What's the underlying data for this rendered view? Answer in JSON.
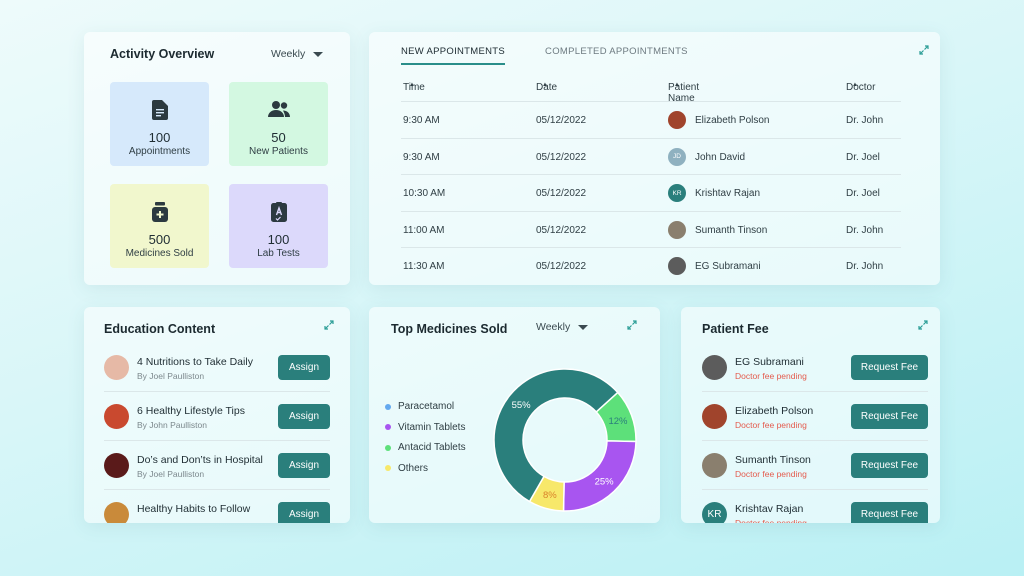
{
  "activity": {
    "title": "Activity Overview",
    "period": "Weekly",
    "tiles": [
      {
        "value": "100",
        "label": "Appointments",
        "icon": "document-icon",
        "color": "#d6e9fb"
      },
      {
        "value": "50",
        "label": "New Patients",
        "icon": "users-icon",
        "color": "#d3f8e1"
      },
      {
        "value": "500",
        "label": "Medicines Sold",
        "icon": "medicine-bottle-icon",
        "color": "#f1f7cd"
      },
      {
        "value": "100",
        "label": "Lab Tests",
        "icon": "lab-report-icon",
        "color": "#dcd9fb"
      }
    ]
  },
  "appointments": {
    "tabs": [
      "NEW APPOINTMENTS",
      "COMPLETED APPOINTMENTS"
    ],
    "active_tab": 0,
    "columns": [
      "Time",
      "Date",
      "Patient Name",
      "Doctor"
    ],
    "rows": [
      {
        "time": "9:30 AM",
        "date": "05/12/2022",
        "patient": "Elizabeth Polson",
        "avatar": "",
        "avatar_color": "#a0442c",
        "doctor": "Dr. John"
      },
      {
        "time": "9:30 AM",
        "date": "05/12/2022",
        "patient": "John David",
        "avatar": "JD",
        "avatar_color": "#8fb1c0",
        "doctor": "Dr. Joel"
      },
      {
        "time": "10:30 AM",
        "date": "05/12/2022",
        "patient": "Krishtav Rajan",
        "avatar": "KR",
        "avatar_color": "#2a7f7c",
        "doctor": "Dr. Joel"
      },
      {
        "time": "11:00 AM",
        "date": "05/12/2022",
        "patient": "Sumanth Tinson",
        "avatar": "",
        "avatar_color": "#8a7f6e",
        "doctor": "Dr. John"
      },
      {
        "time": "11:30 AM",
        "date": "05/12/2022",
        "patient": "EG Subramani",
        "avatar": "",
        "avatar_color": "#5c5c5c",
        "doctor": "Dr. John"
      }
    ]
  },
  "education": {
    "title": "Education Content",
    "button_label": "Assign",
    "items": [
      {
        "title": "4 Nutritions to Take Daily",
        "author": "By Joel Paulliston",
        "thumb_color": "#e6b9a6"
      },
      {
        "title": "6 Healthy Lifestyle Tips",
        "author": "By John Paulliston",
        "thumb_color": "#c9492f"
      },
      {
        "title": "Do’s and Don’ts in Hospital",
        "author": "By Joel Paulliston",
        "thumb_color": "#5a1a1a"
      },
      {
        "title": "Healthy Habits to Follow",
        "author": "",
        "thumb_color": "#c98a3a"
      }
    ]
  },
  "medicines": {
    "title": "Top Medicines Sold",
    "period": "Weekly"
  },
  "chart_data": {
    "type": "pie",
    "categories": [
      "Paracetamol",
      "Vitamin Tablets",
      "Antacid Tablets",
      "Others"
    ],
    "values": [
      55,
      25,
      12,
      8
    ],
    "labels": [
      "55%",
      "25%",
      "12%",
      "8%"
    ],
    "colors": [
      "#2a7f7c",
      "#a855f0",
      "#5de07a",
      "#f7e86a"
    ],
    "legend": "left",
    "title": ""
  },
  "fees": {
    "title": "Patient Fee",
    "button_label": "Request Fee",
    "items": [
      {
        "name": "EG Subramani",
        "status": "Doctor fee pending",
        "avatar": "",
        "avatar_color": "#5c5c5c"
      },
      {
        "name": "Elizabeth Polson",
        "status": "Doctor fee pending",
        "avatar": "",
        "avatar_color": "#a0442c"
      },
      {
        "name": "Sumanth Tinson",
        "status": "Doctor fee pending",
        "avatar": "",
        "avatar_color": "#8a7f6e"
      },
      {
        "name": "Krishtav Rajan",
        "status": "Doctor fee pending",
        "avatar": "KR",
        "avatar_color": "#2a7f7c"
      }
    ]
  }
}
